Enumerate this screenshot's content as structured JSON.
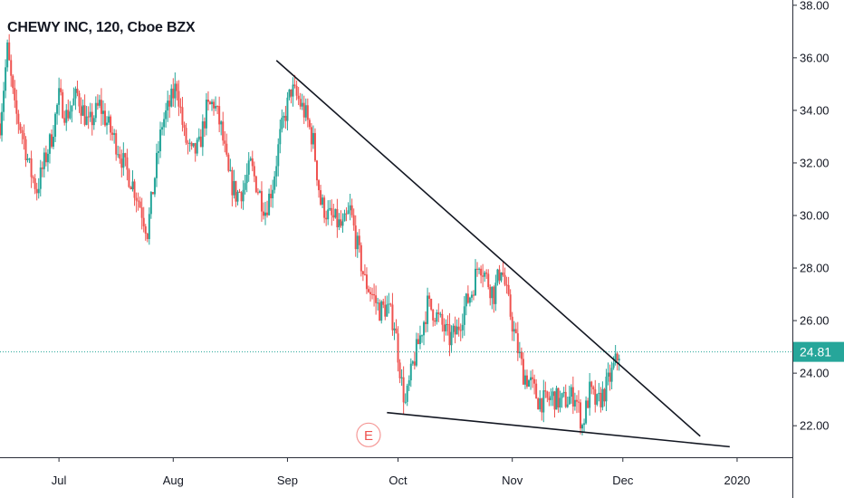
{
  "title": "CHEWY INC, 120, Cboe BZX",
  "colors": {
    "up": "#26a69a",
    "down": "#ef5350",
    "price_line": "#26a69a",
    "price_badge": "#26a69a",
    "trendline": "#131722",
    "grid_axis": "#2a2e39",
    "event": "#ef5350"
  },
  "chart_data": {
    "type": "candlestick",
    "title": "CHEWY INC, 120, Cboe BZX",
    "x_ticks": [
      "Jul",
      "Aug",
      "Sep",
      "Oct",
      "Nov",
      "Dec",
      "2020"
    ],
    "x_tick_dates": [
      "2019-07-01",
      "2019-08-01",
      "2019-09-01",
      "2019-10-01",
      "2019-11-01",
      "2019-12-01",
      "2020-01-01"
    ],
    "y_ticks": [
      "22.00",
      "24.00",
      "26.00",
      "28.00",
      "30.00",
      "32.00",
      "34.00",
      "36.00",
      "38.00"
    ],
    "ylim": [
      20.8,
      38.2
    ],
    "xlim": [
      "2019-06-15",
      "2020-01-16"
    ],
    "last_price": "24.81",
    "price_path": [
      [
        "2019-06-15",
        33.5
      ],
      [
        "2019-06-17",
        36.3
      ],
      [
        "2019-06-19",
        34.0
      ],
      [
        "2019-06-21",
        33.2
      ],
      [
        "2019-06-23",
        31.8
      ],
      [
        "2019-06-25",
        31.0
      ],
      [
        "2019-06-27",
        32.0
      ],
      [
        "2019-06-29",
        33.0
      ],
      [
        "2019-07-01",
        34.5
      ],
      [
        "2019-07-03",
        33.8
      ],
      [
        "2019-07-06",
        34.6
      ],
      [
        "2019-07-09",
        33.4
      ],
      [
        "2019-07-12",
        34.2
      ],
      [
        "2019-07-15",
        33.2
      ],
      [
        "2019-07-17",
        32.6
      ],
      [
        "2019-07-19",
        31.8
      ],
      [
        "2019-07-21",
        31.2
      ],
      [
        "2019-07-23",
        30.4
      ],
      [
        "2019-07-25",
        29.4
      ],
      [
        "2019-07-27",
        31.5
      ],
      [
        "2019-07-29",
        33.5
      ],
      [
        "2019-07-31",
        34.2
      ],
      [
        "2019-08-02",
        35.0
      ],
      [
        "2019-08-04",
        33.0
      ],
      [
        "2019-08-06",
        32.3
      ],
      [
        "2019-08-08",
        32.6
      ],
      [
        "2019-08-10",
        34.0
      ],
      [
        "2019-08-12",
        34.3
      ],
      [
        "2019-08-14",
        33.3
      ],
      [
        "2019-08-16",
        31.5
      ],
      [
        "2019-08-18",
        30.8
      ],
      [
        "2019-08-20",
        31.0
      ],
      [
        "2019-08-22",
        31.9
      ],
      [
        "2019-08-24",
        31.0
      ],
      [
        "2019-08-26",
        30.2
      ],
      [
        "2019-08-28",
        31.2
      ],
      [
        "2019-08-30",
        33.0
      ],
      [
        "2019-09-02",
        34.8
      ],
      [
        "2019-09-04",
        34.4
      ],
      [
        "2019-09-06",
        33.8
      ],
      [
        "2019-09-08",
        32.8
      ],
      [
        "2019-09-10",
        30.5
      ],
      [
        "2019-09-12",
        30.0
      ],
      [
        "2019-09-14",
        29.8
      ],
      [
        "2019-09-16",
        29.5
      ],
      [
        "2019-09-18",
        30.2
      ],
      [
        "2019-09-20",
        28.8
      ],
      [
        "2019-09-22",
        27.5
      ],
      [
        "2019-09-24",
        27.0
      ],
      [
        "2019-09-26",
        26.4
      ],
      [
        "2019-09-28",
        26.5
      ],
      [
        "2019-09-30",
        25.9
      ],
      [
        "2019-10-02",
        23.6
      ],
      [
        "2019-10-03",
        22.8
      ],
      [
        "2019-10-05",
        24.3
      ],
      [
        "2019-10-07",
        25.4
      ],
      [
        "2019-10-09",
        26.6
      ],
      [
        "2019-10-11",
        26.3
      ],
      [
        "2019-10-13",
        25.8
      ],
      [
        "2019-10-15",
        25.3
      ],
      [
        "2019-10-17",
        25.6
      ],
      [
        "2019-10-19",
        26.5
      ],
      [
        "2019-10-21",
        27.1
      ],
      [
        "2019-10-23",
        28.3
      ],
      [
        "2019-10-25",
        27.6
      ],
      [
        "2019-10-27",
        27.0
      ],
      [
        "2019-10-29",
        28.1
      ],
      [
        "2019-10-31",
        26.6
      ],
      [
        "2019-11-02",
        25.2
      ],
      [
        "2019-11-04",
        24.0
      ],
      [
        "2019-11-06",
        23.6
      ],
      [
        "2019-11-08",
        23.0
      ],
      [
        "2019-11-10",
        22.9
      ],
      [
        "2019-11-12",
        23.1
      ],
      [
        "2019-11-14",
        22.9
      ],
      [
        "2019-11-16",
        23.0
      ],
      [
        "2019-11-18",
        23.2
      ],
      [
        "2019-11-20",
        22.0
      ],
      [
        "2019-11-22",
        23.3
      ],
      [
        "2019-11-24",
        22.8
      ],
      [
        "2019-11-26",
        23.3
      ],
      [
        "2019-11-28",
        24.0
      ],
      [
        "2019-11-30",
        24.8
      ]
    ],
    "trendlines": [
      {
        "from": [
          "2019-08-29",
          35.9
        ],
        "to": [
          "2019-12-22",
          21.6
        ]
      },
      {
        "from": [
          "2019-09-28",
          22.5
        ],
        "to": [
          "2019-12-30",
          21.2
        ]
      }
    ],
    "event_label": "E",
    "event_date": "2019-09-23",
    "event_value": 21.65
  }
}
